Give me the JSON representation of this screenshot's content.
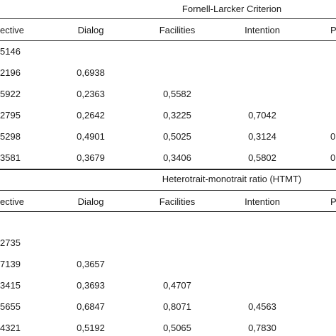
{
  "sections": [
    {
      "title": "Fornell-Larcker Criterion",
      "headers": [
        "ective",
        "Dialog",
        "Facilities",
        "Intention",
        "P"
      ],
      "rows": [
        [
          "5146",
          "",
          "",
          "",
          ""
        ],
        [
          "2196",
          "0,6938",
          "",
          "",
          ""
        ],
        [
          "5922",
          "0,2363",
          "0,5582",
          "",
          ""
        ],
        [
          "2795",
          "0,2642",
          "0,3225",
          "0,7042",
          ""
        ],
        [
          "5298",
          "0,4901",
          "0,5025",
          "0,3124",
          "0"
        ],
        [
          "3581",
          "0,3679",
          "0,3406",
          "0,5802",
          "0"
        ]
      ]
    },
    {
      "title": "Heterotrait-monotrait ratio (HTMT)",
      "headers": [
        "ective",
        "Dialog",
        "Facilities",
        "Intention",
        "P"
      ],
      "rows": [
        [
          "",
          "",
          "",
          "",
          ""
        ],
        [
          "2735",
          "",
          "",
          "",
          ""
        ],
        [
          "7139",
          "0,3657",
          "",
          "",
          ""
        ],
        [
          "3415",
          "0,3693",
          "0,4707",
          "",
          ""
        ],
        [
          "5655",
          "0,6847",
          "0,8071",
          "0,4563",
          ""
        ],
        [
          "4321",
          "0,5192",
          "0,5065",
          "0,7830",
          ""
        ]
      ]
    }
  ]
}
